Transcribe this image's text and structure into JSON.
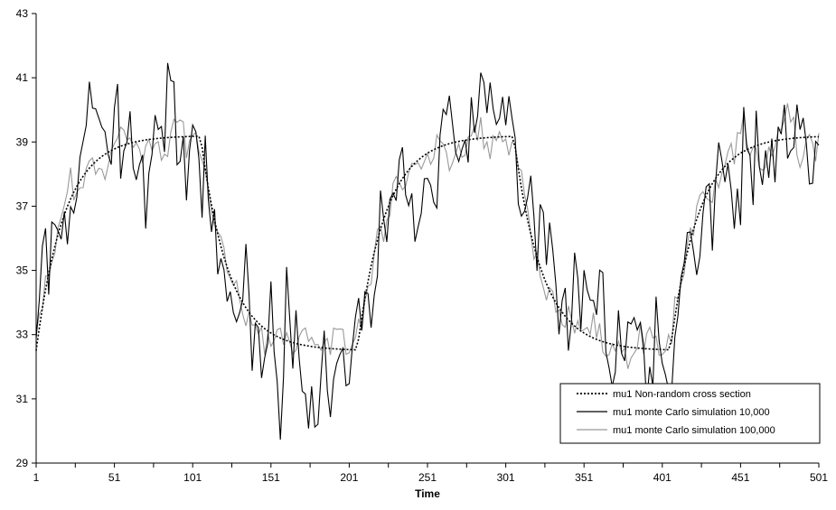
{
  "chart_data": {
    "type": "line",
    "title": "",
    "xlabel": "Time",
    "ylabel": "",
    "xlim": [
      1,
      501
    ],
    "ylim": [
      29,
      43
    ],
    "x_ticks": [
      1,
      51,
      101,
      151,
      201,
      251,
      301,
      351,
      401,
      451,
      501
    ],
    "y_ticks": [
      29,
      31,
      33,
      35,
      37,
      39,
      41,
      43
    ],
    "grid": false,
    "legend_position": "bottom-right",
    "series_model": {
      "equilibrium_low": 32.5,
      "equilibrium_high": 39.2,
      "regime_switch_times": [
        1,
        106,
        206,
        306,
        406
      ],
      "regime_start_levels": [
        32.5,
        39.2,
        32.5,
        39.2,
        32.5
      ],
      "regime_targets": [
        39.2,
        32.5,
        39.2,
        32.5,
        39.2
      ],
      "approximate_sample_interval": 2
    },
    "series": [
      {
        "name": "mu1 Non-random cross section",
        "color": "#000000",
        "style": "dotted",
        "noise_amplitude": 0.0
      },
      {
        "name": "mu1 monte Carlo simulation 10,000",
        "color": "#000000",
        "style": "solid",
        "noise_amplitude": 1.0
      },
      {
        "name": "mu1 monte Carlo simulation 100,000",
        "color": "#999999",
        "style": "solid",
        "noise_amplitude": 0.35
      }
    ]
  }
}
